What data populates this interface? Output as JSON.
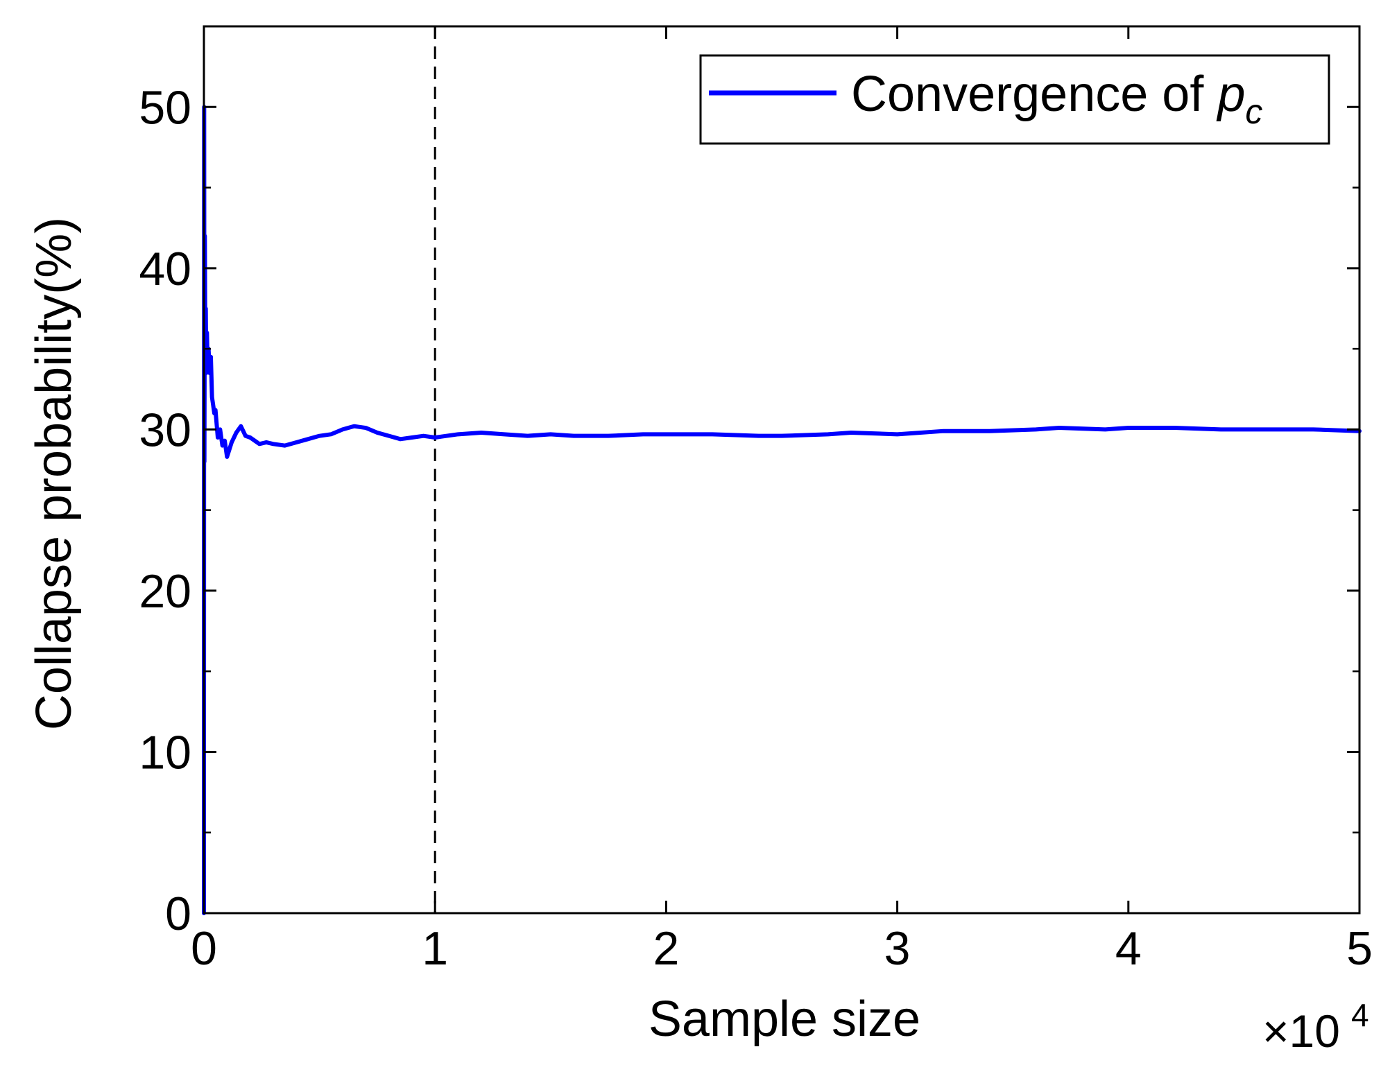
{
  "chart_data": {
    "type": "line",
    "title": "",
    "xlabel": "Sample size",
    "ylabel": "Collapse probability(%)",
    "x_multiplier": {
      "base": "×10",
      "exponent": "4"
    },
    "xlim": [
      0,
      5
    ],
    "ylim": [
      0,
      55
    ],
    "x_ticks": [
      0,
      1,
      2,
      3,
      4,
      5
    ],
    "x_tick_labels": [
      "0",
      "1",
      "2",
      "3",
      "4",
      "5"
    ],
    "y_ticks": [
      0,
      10,
      20,
      30,
      40,
      50
    ],
    "y_tick_labels": [
      "0",
      "10",
      "20",
      "30",
      "40",
      "50"
    ],
    "y_minor_ticks": [
      5,
      15,
      25,
      35,
      45
    ],
    "grid": false,
    "legend": {
      "position": "top-right",
      "label_main": "Convergence of ",
      "label_symbol": "p",
      "label_subscript": "c"
    },
    "reference_line": {
      "x": 1,
      "style": "dashed",
      "color": "#000000"
    },
    "series": [
      {
        "name": "Convergence of p_c",
        "color": "#0000ff",
        "x": [
          0.0,
          0.001,
          0.002,
          0.004,
          0.006,
          0.008,
          0.01,
          0.013,
          0.016,
          0.02,
          0.025,
          0.03,
          0.035,
          0.04,
          0.045,
          0.05,
          0.06,
          0.07,
          0.08,
          0.09,
          0.1,
          0.12,
          0.14,
          0.16,
          0.18,
          0.2,
          0.22,
          0.24,
          0.27,
          0.3,
          0.35,
          0.4,
          0.45,
          0.5,
          0.55,
          0.6,
          0.65,
          0.7,
          0.75,
          0.8,
          0.85,
          0.9,
          0.95,
          1.0,
          1.1,
          1.2,
          1.3,
          1.4,
          1.5,
          1.6,
          1.75,
          1.9,
          2.0,
          2.2,
          2.4,
          2.5,
          2.7,
          2.8,
          3.0,
          3.2,
          3.4,
          3.6,
          3.7,
          3.9,
          4.0,
          4.2,
          4.4,
          4.6,
          4.8,
          5.0
        ],
        "y": [
          0.0,
          50.0,
          28.0,
          42.0,
          35.0,
          37.5,
          33.5,
          36.0,
          34.0,
          35.0,
          33.5,
          34.5,
          32.0,
          31.5,
          31.0,
          31.2,
          29.5,
          30.0,
          29.0,
          29.3,
          28.3,
          29.2,
          29.8,
          30.2,
          29.6,
          29.5,
          29.3,
          29.1,
          29.2,
          29.1,
          29.0,
          29.2,
          29.4,
          29.6,
          29.7,
          30.0,
          30.2,
          30.1,
          29.8,
          29.6,
          29.4,
          29.5,
          29.6,
          29.5,
          29.7,
          29.8,
          29.7,
          29.6,
          29.7,
          29.6,
          29.6,
          29.7,
          29.7,
          29.7,
          29.6,
          29.6,
          29.7,
          29.8,
          29.7,
          29.9,
          29.9,
          30.0,
          30.1,
          30.0,
          30.1,
          30.1,
          30.0,
          30.0,
          30.0,
          29.9
        ]
      }
    ]
  }
}
